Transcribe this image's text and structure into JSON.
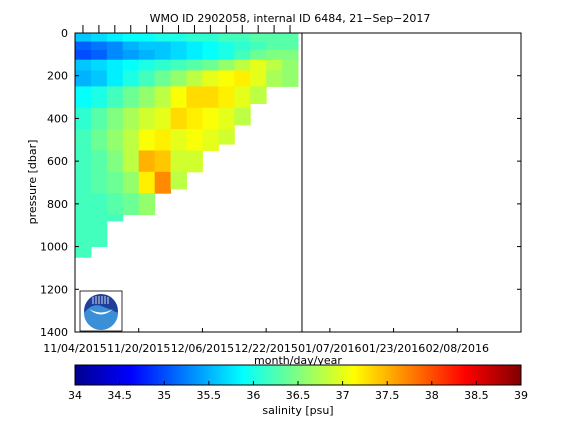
{
  "chart_data": {
    "type": "heatmap",
    "title": "WMO ID 2902058, internal ID 6484, 21−Sep−2017",
    "xlabel": "month/day/year",
    "ylabel": "pressure [dbar]",
    "colorbar_label": "salinity [psu]",
    "x_tick_labels": [
      "11/04/2015",
      "11/20/2015",
      "12/06/2015",
      "12/22/2015",
      "01/07/2016",
      "01/23/2016",
      "02/08/2016"
    ],
    "y_ticks": [
      0,
      200,
      400,
      600,
      800,
      1000,
      1200,
      1400
    ],
    "ylim": [
      1400,
      0
    ],
    "y_reversed": true,
    "colorbar_ticks": [
      34,
      34.5,
      35,
      35.5,
      36,
      36.5,
      37,
      37.5,
      38,
      38.5,
      39
    ],
    "clim": [
      34,
      39
    ],
    "colormap": "jet",
    "colormap_stops": [
      "#00008f",
      "#0000ff",
      "#0080ff",
      "#00ffff",
      "#80ff80",
      "#ffff00",
      "#ff8000",
      "#ff0000",
      "#800000"
    ],
    "reference_line_date": "12/31/2015",
    "x": [
      "11/06/2015",
      "11/10/2015",
      "11/14/2015",
      "11/18/2015",
      "11/22/2015",
      "11/26/2015",
      "11/30/2015",
      "12/04/2015",
      "12/08/2015",
      "12/12/2015",
      "12/16/2015",
      "12/20/2015",
      "12/24/2015",
      "12/28/2015"
    ],
    "max_depth": [
      1090,
      1000,
      880,
      870,
      880,
      800,
      730,
      650,
      580,
      520,
      430,
      330,
      280,
      250
    ],
    "salinity_at_depth": {
      "depths": [
        20,
        60,
        100,
        150,
        200,
        300,
        400,
        500,
        600,
        700,
        800,
        900,
        1000
      ],
      "profiles": [
        [
          35.6,
          35.1,
          35.0,
          35.6,
          35.5,
          35.9,
          36.1,
          36.2,
          36.2,
          36.2,
          36.2,
          36.2,
          36.2
        ],
        [
          35.7,
          35.2,
          35.1,
          35.7,
          35.6,
          36.0,
          36.3,
          36.4,
          36.3,
          36.3,
          36.2,
          36.2,
          36.2
        ],
        [
          35.8,
          35.3,
          35.3,
          35.8,
          35.8,
          36.2,
          36.5,
          36.6,
          36.5,
          36.4,
          36.3,
          36.2,
          null
        ],
        [
          35.9,
          35.5,
          35.4,
          35.9,
          36.0,
          36.4,
          36.7,
          36.8,
          36.8,
          36.6,
          36.4,
          null,
          null
        ],
        [
          35.9,
          35.6,
          35.5,
          36.0,
          36.2,
          36.6,
          36.9,
          37.1,
          37.5,
          37.2,
          36.6,
          null,
          null
        ],
        [
          36.0,
          35.6,
          35.6,
          36.1,
          36.4,
          36.8,
          37.0,
          37.2,
          37.4,
          37.7,
          null,
          null,
          null
        ],
        [
          36.0,
          35.7,
          35.7,
          36.2,
          36.6,
          37.1,
          37.3,
          37.0,
          36.9,
          36.8,
          null,
          null,
          null
        ],
        [
          36.1,
          35.8,
          35.8,
          36.3,
          36.8,
          37.3,
          37.2,
          37.1,
          36.9,
          null,
          null,
          null,
          null
        ],
        [
          36.1,
          35.9,
          35.9,
          36.4,
          37.0,
          37.3,
          37.1,
          37.0,
          null,
          null,
          null,
          null,
          null
        ],
        [
          36.2,
          36.0,
          36.0,
          36.6,
          37.1,
          37.2,
          37.0,
          36.9,
          null,
          null,
          null,
          null,
          null
        ],
        [
          36.2,
          36.1,
          36.2,
          36.8,
          37.2,
          37.0,
          36.8,
          null,
          null,
          null,
          null,
          null,
          null
        ],
        [
          36.3,
          36.2,
          36.4,
          37.0,
          37.0,
          36.8,
          null,
          null,
          null,
          null,
          null,
          null,
          null
        ],
        [
          36.3,
          36.3,
          36.5,
          36.8,
          36.7,
          null,
          null,
          null,
          null,
          null,
          null,
          null,
          null
        ],
        [
          36.3,
          36.3,
          36.5,
          36.6,
          36.6,
          null,
          null,
          null,
          null,
          null,
          null,
          null,
          null
        ]
      ]
    }
  },
  "logo": {
    "name": "NOAA"
  }
}
